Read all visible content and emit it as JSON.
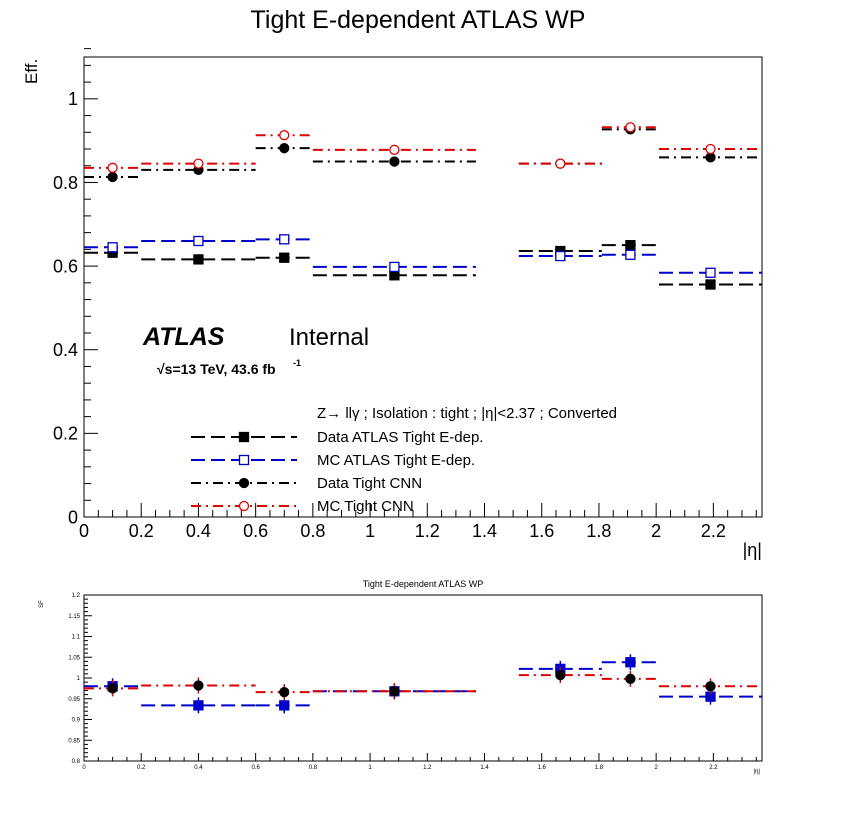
{
  "chart_data": [
    {
      "type": "scatter",
      "title": "Tight E-dependent ATLAS WP",
      "xlabel": "|η|",
      "ylabel": "Eff.",
      "xlim": [
        0,
        2.37
      ],
      "ylim": [
        0,
        1.1
      ],
      "x_ticks": [
        "0",
        "0.2",
        "0.4",
        "0.6",
        "0.8",
        "1",
        "1.2",
        "1.4",
        "1.6",
        "1.8",
        "2",
        "2.2"
      ],
      "y_ticks": [
        "0",
        "0.2",
        "0.4",
        "0.6",
        "0.8",
        "1"
      ],
      "bins": [
        [
          0,
          0.2
        ],
        [
          0.2,
          0.6
        ],
        [
          0.6,
          0.8
        ],
        [
          0.8,
          1.37
        ],
        [
          1.52,
          1.81
        ],
        [
          1.81,
          2.01
        ],
        [
          2.01,
          2.37
        ]
      ],
      "atlas_label": "ATLAS",
      "atlas_status": "Internal",
      "energy_prefix": "√s=13 TeV, 43.6 fb",
      "energy_exp": "-1",
      "legend_header": "Z→ llγ ; Isolation : tight ; |η|<2.37 ; Converted",
      "series": [
        {
          "name": "Data ATLAS Tight E-dep.",
          "color": "#000000",
          "marker": "square-filled",
          "dash": "long-dash",
          "values": [
            0.632,
            0.616,
            0.62,
            0.578,
            0.636,
            0.65,
            0.556
          ]
        },
        {
          "name": "MC ATLAS Tight E-dep.",
          "color": "#0000cc",
          "marker": "square-open",
          "dash": "long-dash",
          "values": [
            0.645,
            0.66,
            0.664,
            0.598,
            0.624,
            0.627,
            0.584
          ]
        },
        {
          "name": "Data Tight CNN",
          "color": "#000000",
          "marker": "circle-filled",
          "dash": "dash-dot",
          "values": [
            0.813,
            0.83,
            0.882,
            0.85,
            0.845,
            0.927,
            0.86
          ]
        },
        {
          "name": "MC Tight CNN",
          "color": "#e00000",
          "marker": "circle-open",
          "dash": "dash-dot",
          "values": [
            0.835,
            0.845,
            0.913,
            0.878,
            0.845,
            0.932,
            0.88
          ]
        }
      ]
    },
    {
      "type": "scatter",
      "title": "Tight E-dependent ATLAS WP",
      "xlabel": "|η|",
      "ylabel": "SF",
      "xlim": [
        0,
        2.37
      ],
      "ylim": [
        0.8,
        1.2
      ],
      "x_ticks": [
        "0",
        "0.2",
        "0.4",
        "0.6",
        "0.8",
        "1",
        "1.2",
        "1.4",
        "1.6",
        "1.8",
        "2",
        "2.2"
      ],
      "y_ticks": [
        "0.8",
        "0.85",
        "0.9",
        "0.95",
        "1",
        "1.05",
        "1.1",
        "1.15",
        "1.2"
      ],
      "series": [
        {
          "color": "#0000cc",
          "marker": "square-filled",
          "dash": "long-dash",
          "values": [
            0.98,
            0.934,
            0.934,
            0.968,
            1.022,
            1.038,
            0.955
          ]
        },
        {
          "color": "#e00000",
          "marker": "circle-filled",
          "dash": "dash-dot",
          "values": [
            0.975,
            0.982,
            0.966,
            0.968,
            1.007,
            0.998,
            0.98
          ]
        }
      ]
    }
  ]
}
